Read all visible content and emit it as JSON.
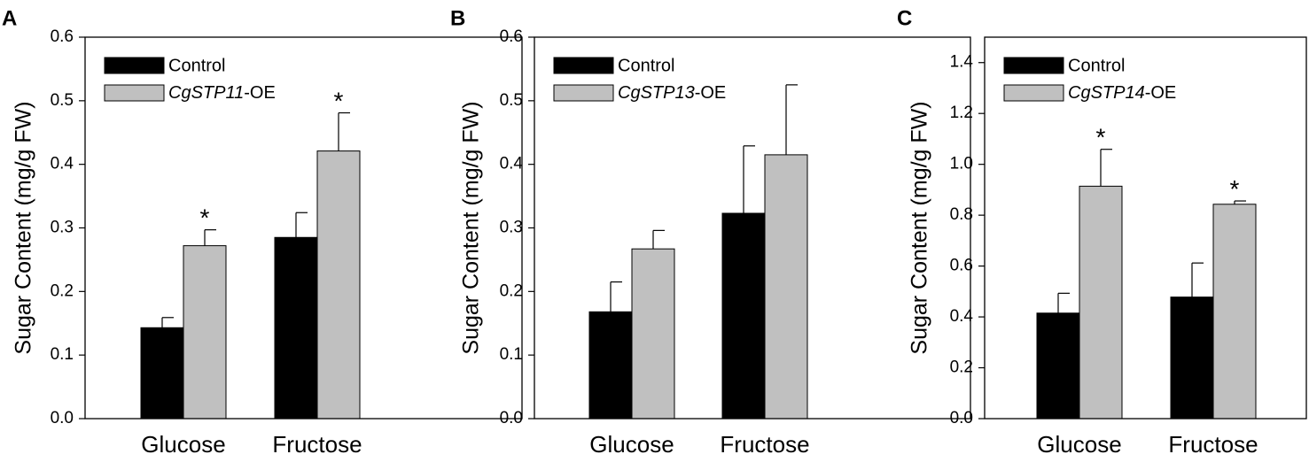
{
  "chart_data": [
    {
      "type": "bar",
      "panel": "A",
      "ylabel": "Sugar Content (mg/g FW)",
      "ylim": [
        0,
        0.6
      ],
      "yticks": [
        "0.0",
        "0.1",
        "0.2",
        "0.3",
        "0.4",
        "0.5",
        "0.6"
      ],
      "categories": [
        "Glucose",
        "Fructose"
      ],
      "legend_position": "top-left",
      "series": [
        {
          "name": "Control",
          "italic_part": "",
          "suffix": "",
          "color": "#000000",
          "values": [
            0.143,
            0.285
          ],
          "errors": [
            0.016,
            0.039
          ],
          "significance": [
            "",
            ""
          ]
        },
        {
          "name": "CgSTP11-OE",
          "italic_part": "CgSTP11",
          "suffix": "-OE",
          "color": "#c0c0c0",
          "values": [
            0.272,
            0.421
          ],
          "errors": [
            0.025,
            0.06
          ],
          "significance": [
            "*",
            "*"
          ]
        }
      ]
    },
    {
      "type": "bar",
      "panel": "B",
      "ylabel": "Sugar Content (mg/g FW)",
      "ylim": [
        0,
        0.6
      ],
      "yticks": [
        "0.0",
        "0.1",
        "0.2",
        "0.3",
        "0.4",
        "0.5",
        "0.6"
      ],
      "categories": [
        "Glucose",
        "Fructose"
      ],
      "legend_position": "top-left",
      "series": [
        {
          "name": "Control",
          "italic_part": "",
          "suffix": "",
          "color": "#000000",
          "values": [
            0.168,
            0.323
          ],
          "errors": [
            0.047,
            0.106
          ],
          "significance": [
            "",
            ""
          ]
        },
        {
          "name": "CgSTP13-OE",
          "italic_part": "CgSTP13",
          "suffix": "-OE",
          "color": "#c0c0c0",
          "values": [
            0.267,
            0.415
          ],
          "errors": [
            0.029,
            0.11
          ],
          "significance": [
            "",
            ""
          ]
        }
      ]
    },
    {
      "type": "bar",
      "panel": "C",
      "ylabel": "Sugar Content (mg/g FW)",
      "ylim": [
        0,
        1.5
      ],
      "yticks": [
        "0.0",
        "0.2",
        "0.4",
        "0.6",
        "0.8",
        "1.0",
        "1.2",
        "1.4"
      ],
      "categories": [
        "Glucose",
        "Fructose"
      ],
      "legend_position": "top-left",
      "series": [
        {
          "name": "Control",
          "italic_part": "",
          "suffix": "",
          "color": "#000000",
          "values": [
            0.415,
            0.478
          ],
          "errors": [
            0.078,
            0.134
          ],
          "significance": [
            "",
            ""
          ]
        },
        {
          "name": "CgSTP14-OE",
          "italic_part": "CgSTP14",
          "suffix": "-OE",
          "color": "#c0c0c0",
          "values": [
            0.914,
            0.843
          ],
          "errors": [
            0.145,
            0.013
          ],
          "significance": [
            "*",
            "*"
          ]
        }
      ]
    }
  ]
}
